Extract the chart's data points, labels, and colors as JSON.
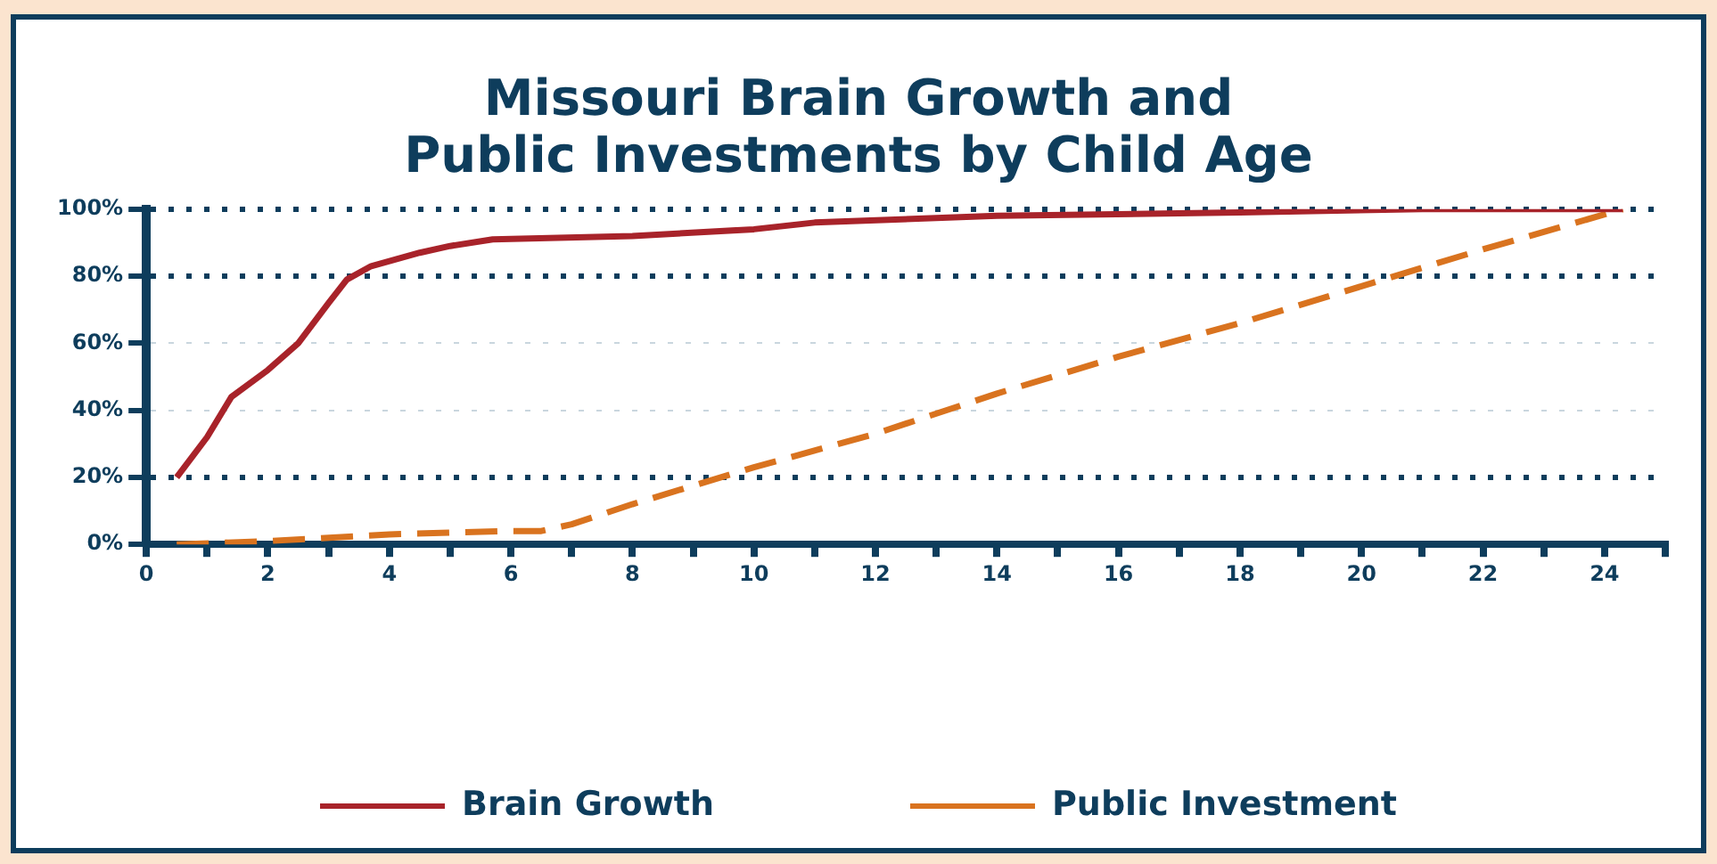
{
  "chart_data": {
    "type": "line",
    "title": "Missouri Brain Growth and Public Investments by Child Age",
    "series": [
      {
        "name": "Brain Growth",
        "color": "#a8232a",
        "line_style": "solid",
        "x": [
          0.5,
          1,
          1.4,
          2,
          2.5,
          3,
          3.3,
          3.7,
          4.5,
          5,
          5.7,
          8,
          10,
          11,
          14,
          18,
          21,
          22,
          24.3
        ],
        "values": [
          20,
          32,
          44,
          52,
          60,
          72,
          79,
          83,
          87,
          89,
          91,
          92,
          94,
          96,
          98,
          99,
          100,
          100,
          100
        ]
      },
      {
        "name": "Public Investment",
        "color": "#d9731f",
        "line_style": "dashed",
        "x": [
          0.5,
          2,
          4,
          6,
          6.5,
          7,
          8,
          10,
          12,
          14,
          16,
          18,
          20,
          22,
          24.3
        ],
        "values": [
          0,
          1,
          3,
          4,
          4,
          6,
          12,
          23,
          33,
          45,
          56,
          66,
          77,
          88,
          100
        ]
      }
    ],
    "xlim": [
      0,
      25
    ],
    "xticks": [
      0,
      {
        "value": 1,
        "label": null
      },
      2,
      {
        "value": 3,
        "label": null
      },
      4,
      {
        "value": 5,
        "label": null
      },
      6,
      {
        "value": 7,
        "label": null
      },
      8,
      {
        "value": 9,
        "label": null
      },
      10,
      {
        "value": 11,
        "label": null
      },
      12,
      {
        "value": 13,
        "label": null
      },
      14,
      {
        "value": 15,
        "label": null
      },
      16,
      {
        "value": 17,
        "label": null
      },
      18,
      {
        "value": 19,
        "label": null
      },
      20,
      {
        "value": 21,
        "label": null
      },
      22,
      {
        "value": 23,
        "label": null
      },
      24,
      {
        "value": 25,
        "label": null
      }
    ],
    "ylim": [
      0,
      100
    ],
    "yticks": [
      {
        "value": 0,
        "label": "0%"
      },
      {
        "value": 20,
        "label": "20%"
      },
      {
        "value": 40,
        "label": "40%"
      },
      {
        "value": 60,
        "label": "60%"
      },
      {
        "value": 80,
        "label": "80%"
      },
      {
        "value": 100,
        "label": "100%"
      }
    ],
    "grid": "y",
    "legend": "bottom",
    "marker": "none"
  }
}
